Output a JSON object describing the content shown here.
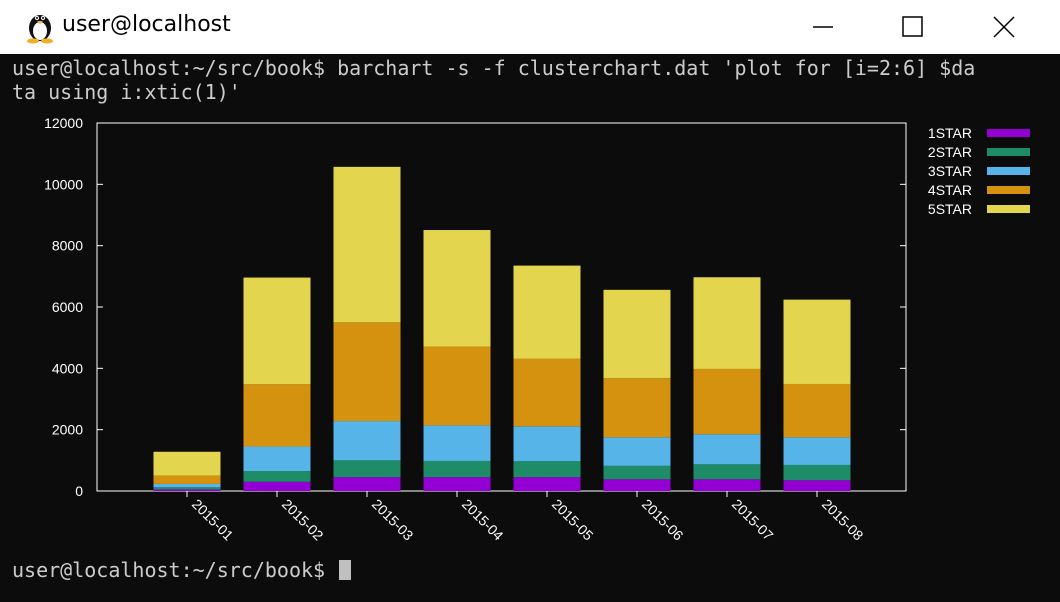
{
  "window": {
    "title": "user@localhost",
    "icon": "tux-penguin-icon"
  },
  "terminal": {
    "command_line_1": "user@localhost:~/src/book$ barchart -s -f clusterchart.dat 'plot for [i=2:6] $da",
    "command_line_2": "ta using i:xtic(1)'",
    "prompt": "user@localhost:~/src/book$ "
  },
  "chart_data": {
    "type": "bar",
    "stacked": true,
    "categories": [
      "2015-01",
      "2015-02",
      "2015-03",
      "2015-04",
      "2015-05",
      "2015-06",
      "2015-07",
      "2015-08"
    ],
    "series": [
      {
        "name": "1STAR",
        "color": "#9400d3",
        "values": [
          50,
          300,
          450,
          450,
          450,
          380,
          380,
          350
        ]
      },
      {
        "name": "2STAR",
        "color": "#1f8c68",
        "values": [
          70,
          350,
          550,
          530,
          520,
          440,
          490,
          500
        ]
      },
      {
        "name": "3STAR",
        "color": "#56b4e9",
        "values": [
          110,
          800,
          1280,
          1160,
          1140,
          930,
          980,
          900
        ]
      },
      {
        "name": "4STAR",
        "color": "#d4920e",
        "values": [
          270,
          2030,
          3220,
          2570,
          2200,
          1930,
          2130,
          1740
        ]
      },
      {
        "name": "5STAR",
        "color": "#e3d54d",
        "values": [
          780,
          3480,
          5070,
          3800,
          3040,
          2880,
          2990,
          2750
        ]
      }
    ],
    "ylim": [
      0,
      12000
    ],
    "yticks": [
      0,
      2000,
      4000,
      6000,
      8000,
      10000,
      12000
    ],
    "xlabel": "",
    "ylabel": "",
    "legend_position": "top-right, outside plot"
  }
}
